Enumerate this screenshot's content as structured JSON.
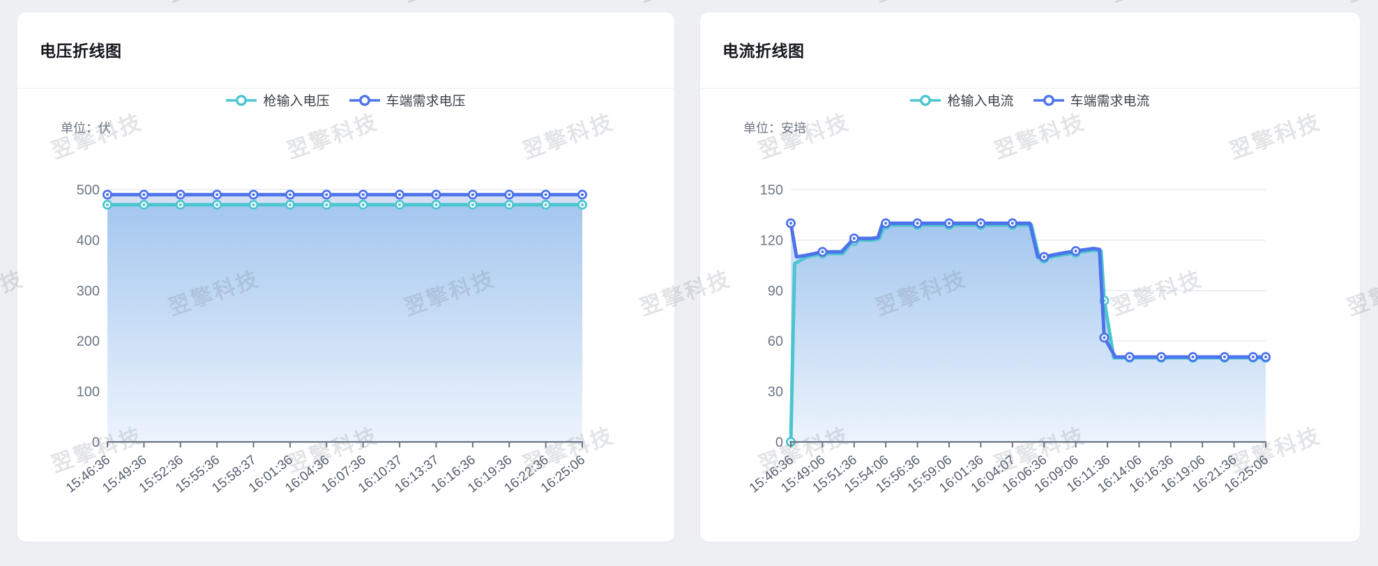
{
  "page": {
    "background": "#edeff3",
    "watermark_text": "翌擎科技"
  },
  "chart_data": [
    {
      "type": "area",
      "title": "电压折线图",
      "unit_label": "单位：伏",
      "xlabel": "",
      "ylabel": "伏",
      "ylim": [
        0,
        500
      ],
      "yticks": [
        0,
        100,
        200,
        300,
        400,
        500
      ],
      "grid": true,
      "legend_position": "top-center",
      "categories": [
        "15:46:36",
        "15:49:36",
        "15:52:36",
        "15:55:36",
        "15:58:37",
        "16:01:36",
        "16:04:36",
        "16:07:36",
        "16:10:37",
        "16:13:37",
        "16:16:36",
        "16:19:36",
        "16:22:36",
        "16:25:06"
      ],
      "series": [
        {
          "name": "枪输入电压",
          "color": "#4cc5cf",
          "area": {
            "type": "gradient",
            "from": "#a2c6ee",
            "to": "#eef5fd",
            "opacity": 0.95
          },
          "points": [
            [
              0,
              470
            ],
            [
              13,
              470
            ]
          ],
          "markers": [
            [
              0,
              470
            ],
            [
              1,
              470
            ],
            [
              2,
              470
            ],
            [
              3,
              470
            ],
            [
              4,
              470
            ],
            [
              5,
              470
            ],
            [
              6,
              470
            ],
            [
              7,
              470
            ],
            [
              8,
              470
            ],
            [
              9,
              470
            ],
            [
              10,
              470
            ],
            [
              11,
              470
            ],
            [
              12,
              470
            ],
            [
              13,
              470
            ]
          ]
        },
        {
          "name": "车端需求电压",
          "color": "#4d73eb",
          "area": {
            "type": "solid",
            "color": "#cdd8f7",
            "opacity": 0.85
          },
          "points": [
            [
              0,
              490
            ],
            [
              13,
              490
            ]
          ],
          "markers": [
            [
              0,
              490
            ],
            [
              1,
              490
            ],
            [
              2,
              490
            ],
            [
              3,
              490
            ],
            [
              4,
              490
            ],
            [
              5,
              490
            ],
            [
              6,
              490
            ],
            [
              7,
              490
            ],
            [
              8,
              490
            ],
            [
              9,
              490
            ],
            [
              10,
              490
            ],
            [
              11,
              490
            ],
            [
              12,
              490
            ],
            [
              13,
              490
            ]
          ]
        }
      ]
    },
    {
      "type": "area",
      "title": "电流折线图",
      "unit_label": "单位：安培",
      "xlabel": "",
      "ylabel": "安培",
      "ylim": [
        0,
        150
      ],
      "yticks": [
        0,
        30,
        60,
        90,
        120,
        150
      ],
      "grid": true,
      "legend_position": "top-center",
      "categories": [
        "15:46:36",
        "15:49:06",
        "15:51:36",
        "15:54:06",
        "15:56:36",
        "15:59:06",
        "16:01:36",
        "16:04:07",
        "16:06:36",
        "16:09:06",
        "16:11:36",
        "16:14:06",
        "16:16:36",
        "16:19:06",
        "16:21:36",
        "16:25:06"
      ],
      "series": [
        {
          "name": "枪输入电流",
          "color": "#4cc5cf",
          "area": {
            "type": "gradient",
            "from": "#a2c6ee",
            "to": "#eef5fd",
            "opacity": 0.95
          },
          "points": [
            [
              0,
              0
            ],
            [
              0.12,
              106
            ],
            [
              0.5,
              110
            ],
            [
              1,
              112
            ],
            [
              1.65,
              112
            ],
            [
              1.85,
              117
            ],
            [
              2.05,
              120
            ],
            [
              2.6,
              120
            ],
            [
              2.8,
              121
            ],
            [
              2.95,
              129
            ],
            [
              7.6,
              129
            ],
            [
              7.85,
              109
            ],
            [
              8,
              109
            ],
            [
              8.5,
              111
            ],
            [
              9,
              112.5
            ],
            [
              9.6,
              114
            ],
            [
              9.8,
              113.5
            ],
            [
              9.9,
              84
            ],
            [
              10.2,
              50
            ],
            [
              15,
              50
            ]
          ],
          "markers": [
            [
              0,
              0
            ],
            [
              1,
              112
            ],
            [
              2,
              119.5
            ],
            [
              3,
              129
            ],
            [
              4,
              129
            ],
            [
              5,
              129
            ],
            [
              6,
              129
            ],
            [
              7,
              129
            ],
            [
              8,
              109
            ],
            [
              9,
              112.5
            ],
            [
              9.9,
              84
            ],
            [
              10.7,
              50
            ],
            [
              11.7,
              50
            ],
            [
              12.7,
              50
            ],
            [
              13.7,
              50
            ],
            [
              14.6,
              50
            ],
            [
              15,
              50
            ]
          ]
        },
        {
          "name": "车端需求电流",
          "color": "#4d73eb",
          "area": {
            "type": "solid",
            "color": "#cdd8f7",
            "opacity": 0.85
          },
          "points": [
            [
              0,
              130
            ],
            [
              0.18,
              110
            ],
            [
              0.5,
              111
            ],
            [
              1,
              113
            ],
            [
              1.6,
              113
            ],
            [
              1.8,
              117
            ],
            [
              2,
              121
            ],
            [
              2.55,
              121
            ],
            [
              2.75,
              121.5
            ],
            [
              2.9,
              130
            ],
            [
              7.55,
              130
            ],
            [
              7.8,
              110
            ],
            [
              8,
              110
            ],
            [
              8.5,
              112
            ],
            [
              9,
              113.5
            ],
            [
              9.55,
              115
            ],
            [
              9.75,
              114.5
            ],
            [
              9.9,
              62
            ],
            [
              10.25,
              50.5
            ],
            [
              15,
              50.5
            ]
          ],
          "markers": [
            [
              0,
              130
            ],
            [
              1,
              113
            ],
            [
              2,
              121
            ],
            [
              3,
              130
            ],
            [
              4,
              130
            ],
            [
              5,
              130
            ],
            [
              6,
              130
            ],
            [
              7,
              130
            ],
            [
              8,
              110
            ],
            [
              9,
              113.5
            ],
            [
              9.9,
              62
            ],
            [
              10.7,
              50.5
            ],
            [
              11.7,
              50.5
            ],
            [
              12.7,
              50.5
            ],
            [
              13.7,
              50.5
            ],
            [
              14.6,
              50.5
            ],
            [
              15,
              50.5
            ]
          ]
        }
      ]
    }
  ],
  "style": {
    "grid_color": "#e5eaf2",
    "axis_color": "#6a7383",
    "ytick_color": "#6e7684",
    "xtick_color": "#555d6d"
  }
}
